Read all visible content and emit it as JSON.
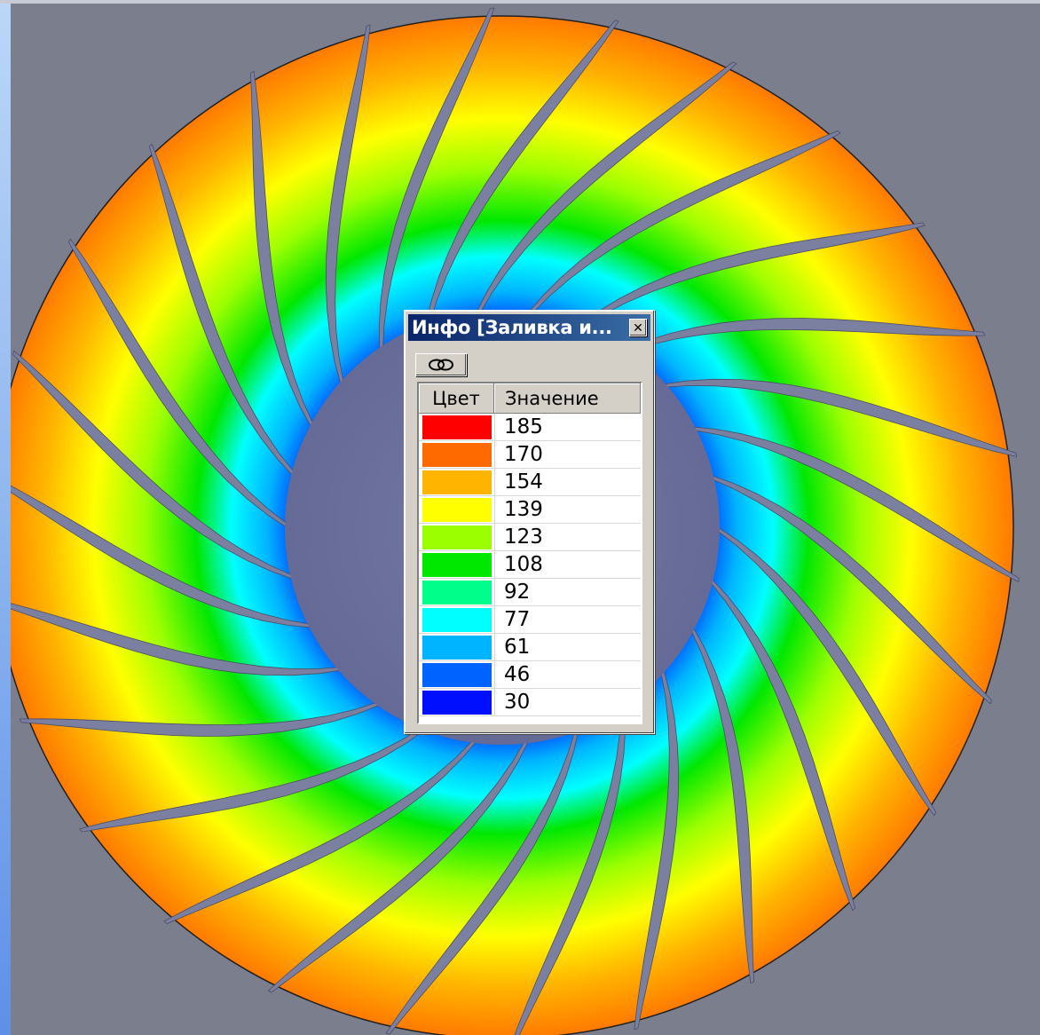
{
  "window": {
    "title": "Инфо [Заливка и...",
    "close_icon": "close-icon",
    "link_icon": "chain-link-icon"
  },
  "legend": {
    "header_color": "Цвет",
    "header_value": "Значение",
    "rows": [
      {
        "value": "185",
        "color": "#ff0000"
      },
      {
        "value": "170",
        "color": "#ff6a00"
      },
      {
        "value": "154",
        "color": "#ffb400"
      },
      {
        "value": "139",
        "color": "#ffff00"
      },
      {
        "value": "123",
        "color": "#9cff00"
      },
      {
        "value": "108",
        "color": "#00e800"
      },
      {
        "value": "92",
        "color": "#00ff8a"
      },
      {
        "value": "77",
        "color": "#00ffff"
      },
      {
        "value": "61",
        "color": "#00b4ff"
      },
      {
        "value": "46",
        "color": "#0062ff"
      },
      {
        "value": "30",
        "color": "#0010ff"
      }
    ]
  },
  "scene": {
    "background": "#7b7e8d",
    "hub_color": "#6f7399",
    "blade_color": "#7c80a0",
    "blade_count": 26
  }
}
